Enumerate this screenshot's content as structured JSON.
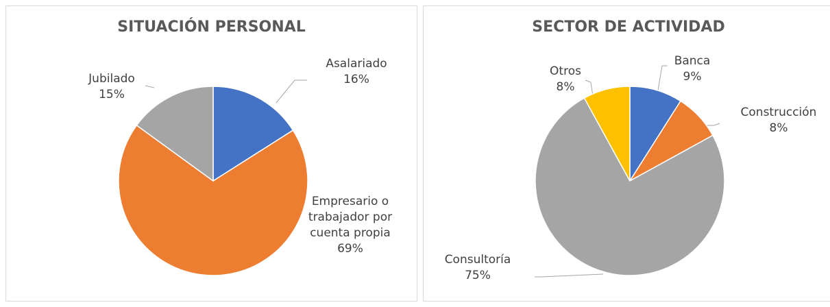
{
  "chart_data": [
    {
      "type": "pie",
      "title": "SITUACIÓN PERSONAL",
      "categories": [
        "Asalariado",
        "Empresario o trabajador por cuenta propia",
        "Jubilado"
      ],
      "values": [
        16,
        69,
        15
      ],
      "value_labels": [
        "16%",
        "69%",
        "15%"
      ],
      "colors": [
        "#4472c4",
        "#ed7d31",
        "#a5a5a5"
      ]
    },
    {
      "type": "pie",
      "title": "SECTOR DE ACTIVIDAD",
      "categories": [
        "Banca",
        "Construcción",
        "Consultoría",
        "Otros"
      ],
      "values": [
        9,
        8,
        75,
        8
      ],
      "value_labels": [
        "9%",
        "8%",
        "75%",
        "8%"
      ],
      "colors": [
        "#4472c4",
        "#ed7d31",
        "#a5a5a5",
        "#ffc000"
      ]
    }
  ]
}
